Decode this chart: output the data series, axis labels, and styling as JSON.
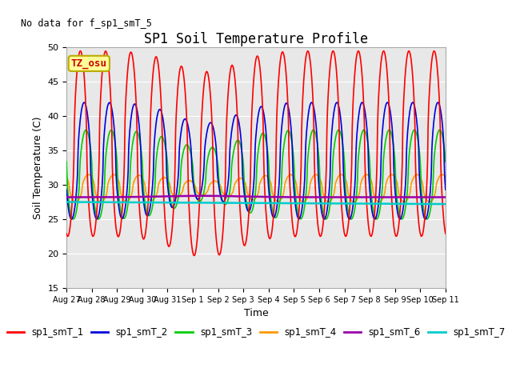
{
  "title": "SP1 Soil Temperature Profile",
  "ylabel": "Soil Temperature (C)",
  "xlabel": "Time",
  "ylim": [
    15,
    50
  ],
  "no_data_text": "No data for f_sp1_smT_5",
  "tz_label": "TZ_osu",
  "plot_bg_color": "#e8e8e8",
  "fig_bg_color": "#ffffff",
  "legend_entries": [
    "sp1_smT_1",
    "sp1_smT_2",
    "sp1_smT_3",
    "sp1_smT_4",
    "sp1_smT_6",
    "sp1_smT_7"
  ],
  "legend_colors": [
    "#ff0000",
    "#0000dd",
    "#00cc00",
    "#ff9900",
    "#9900aa",
    "#00cccc"
  ],
  "line_colors": [
    "#ff0000",
    "#0000dd",
    "#00cc00",
    "#ff9900",
    "#9900aa",
    "#00cccc"
  ],
  "yticks": [
    15,
    20,
    25,
    30,
    35,
    40,
    45,
    50
  ],
  "xtick_labels": [
    "Aug 27",
    "Aug 28",
    "Aug 29",
    "Aug 30",
    "Aug 31",
    "Sep 1",
    "Sep 2",
    "Sep 3",
    "Sep 4",
    "Sep 5",
    "Sep 6",
    "Sep 7",
    "Sep 8",
    "Sep 9",
    "Sep 10",
    "Sep 11"
  ],
  "num_days": 15,
  "points_per_day": 48
}
